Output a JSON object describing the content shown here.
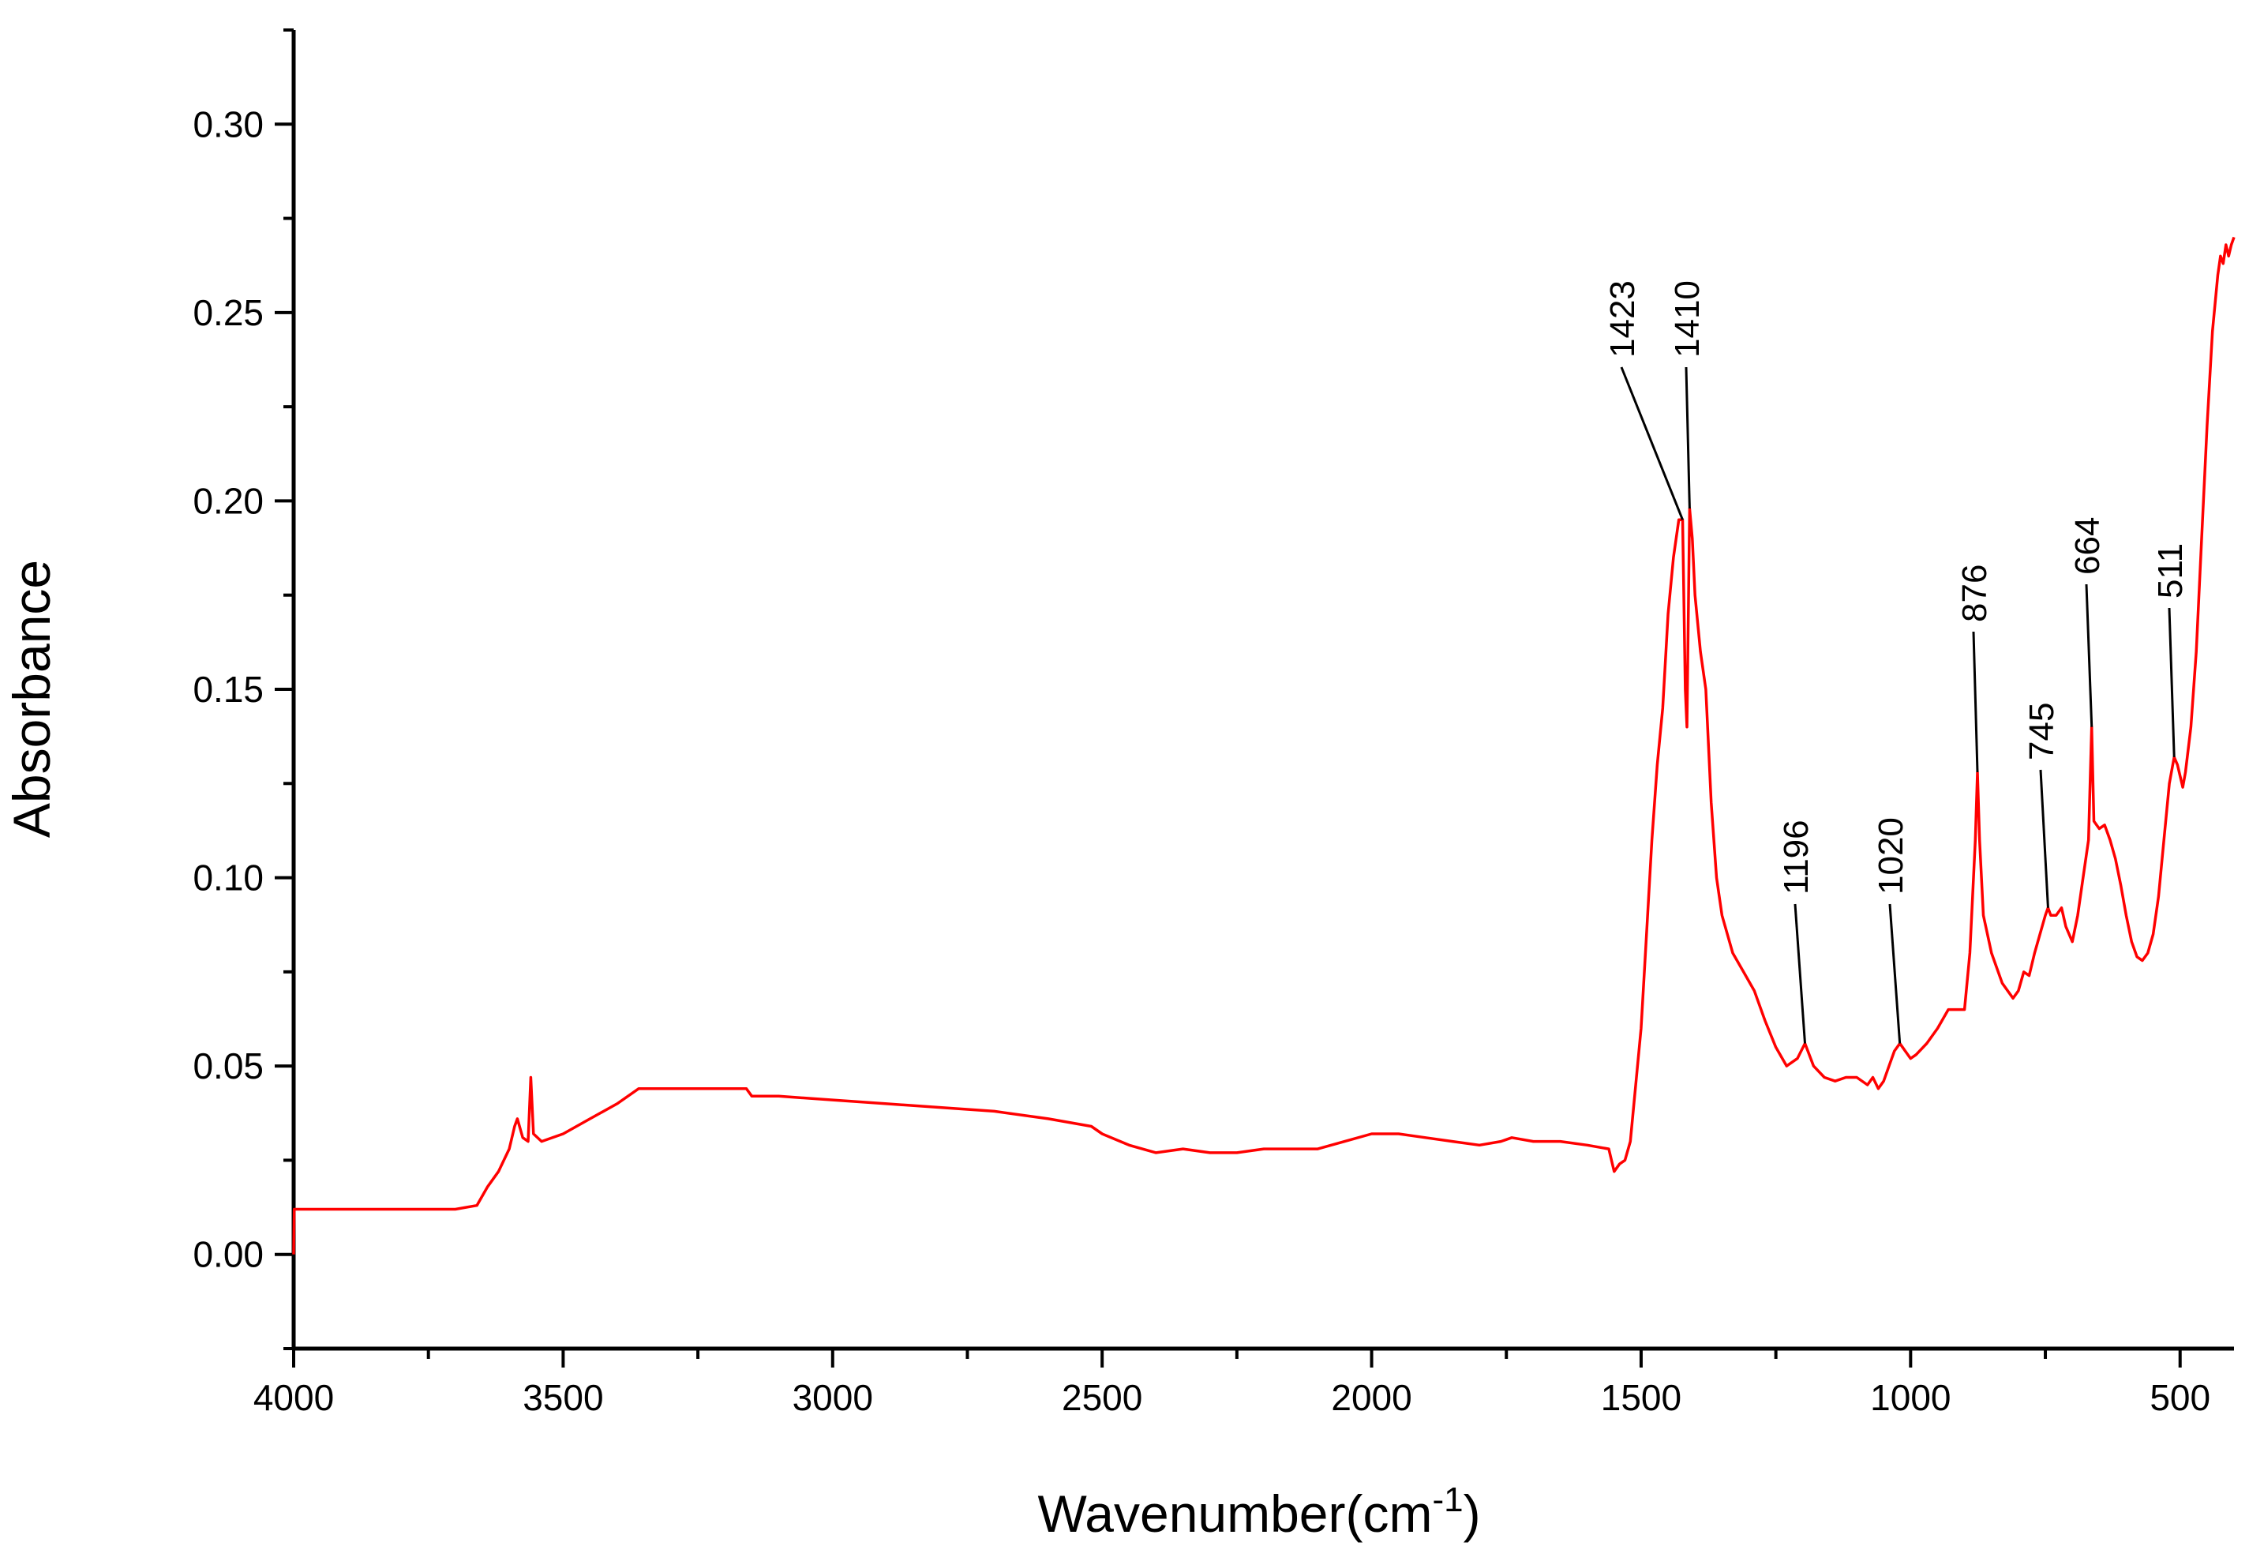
{
  "chart_data": {
    "type": "line",
    "title": "",
    "xlabel": "Wavenumber(cm",
    "xlabel_sup": "-1",
    "xlabel_close": ")",
    "ylabel": "Absorbance",
    "xlim": [
      4000,
      400
    ],
    "ylim": [
      -0.025,
      0.325
    ],
    "x_reversed": true,
    "grid": false,
    "legend": "none",
    "x_ticks": [
      4000,
      3500,
      3000,
      2500,
      2000,
      1500,
      1000,
      500
    ],
    "x_tick_labels": [
      "4000",
      "3500",
      "3000",
      "2500",
      "2000",
      "1500",
      "1000",
      "500"
    ],
    "y_ticks": [
      0.0,
      0.05,
      0.1,
      0.15,
      0.2,
      0.25,
      0.3
    ],
    "y_tick_labels": [
      "0.00",
      "0.05",
      "0.10",
      "0.15",
      "0.20",
      "0.25",
      "0.30"
    ],
    "series": [
      {
        "color": "#ff0000",
        "points": [
          [
            4000,
            0.0
          ],
          [
            3999,
            0.012
          ],
          [
            3950,
            0.012
          ],
          [
            3900,
            0.012
          ],
          [
            3850,
            0.012
          ],
          [
            3800,
            0.012
          ],
          [
            3750,
            0.012
          ],
          [
            3700,
            0.012
          ],
          [
            3660,
            0.013
          ],
          [
            3640,
            0.018
          ],
          [
            3620,
            0.022
          ],
          [
            3600,
            0.028
          ],
          [
            3590,
            0.034
          ],
          [
            3585,
            0.036
          ],
          [
            3575,
            0.031
          ],
          [
            3565,
            0.03
          ],
          [
            3560,
            0.047
          ],
          [
            3555,
            0.032
          ],
          [
            3540,
            0.03
          ],
          [
            3500,
            0.032
          ],
          [
            3450,
            0.036
          ],
          [
            3400,
            0.04
          ],
          [
            3360,
            0.044
          ],
          [
            3300,
            0.044
          ],
          [
            3250,
            0.044
          ],
          [
            3200,
            0.044
          ],
          [
            3160,
            0.044
          ],
          [
            3150,
            0.042
          ],
          [
            3100,
            0.042
          ],
          [
            3000,
            0.041
          ],
          [
            2900,
            0.04
          ],
          [
            2800,
            0.039
          ],
          [
            2700,
            0.038
          ],
          [
            2600,
            0.036
          ],
          [
            2520,
            0.034
          ],
          [
            2500,
            0.032
          ],
          [
            2450,
            0.029
          ],
          [
            2400,
            0.027
          ],
          [
            2350,
            0.028
          ],
          [
            2300,
            0.027
          ],
          [
            2250,
            0.027
          ],
          [
            2200,
            0.028
          ],
          [
            2150,
            0.028
          ],
          [
            2100,
            0.028
          ],
          [
            2050,
            0.03
          ],
          [
            2000,
            0.032
          ],
          [
            1950,
            0.032
          ],
          [
            1900,
            0.031
          ],
          [
            1850,
            0.03
          ],
          [
            1800,
            0.029
          ],
          [
            1760,
            0.03
          ],
          [
            1740,
            0.031
          ],
          [
            1700,
            0.03
          ],
          [
            1650,
            0.03
          ],
          [
            1600,
            0.029
          ],
          [
            1560,
            0.028
          ],
          [
            1550,
            0.022
          ],
          [
            1540,
            0.024
          ],
          [
            1530,
            0.025
          ],
          [
            1520,
            0.03
          ],
          [
            1510,
            0.045
          ],
          [
            1500,
            0.06
          ],
          [
            1490,
            0.085
          ],
          [
            1480,
            0.11
          ],
          [
            1470,
            0.13
          ],
          [
            1460,
            0.145
          ],
          [
            1450,
            0.17
          ],
          [
            1440,
            0.185
          ],
          [
            1430,
            0.195
          ],
          [
            1423,
            0.195
          ],
          [
            1418,
            0.15
          ],
          [
            1415,
            0.14
          ],
          [
            1410,
            0.198
          ],
          [
            1405,
            0.19
          ],
          [
            1400,
            0.175
          ],
          [
            1390,
            0.16
          ],
          [
            1380,
            0.15
          ],
          [
            1370,
            0.12
          ],
          [
            1360,
            0.1
          ],
          [
            1350,
            0.09
          ],
          [
            1330,
            0.08
          ],
          [
            1310,
            0.075
          ],
          [
            1290,
            0.07
          ],
          [
            1270,
            0.062
          ],
          [
            1250,
            0.055
          ],
          [
            1230,
            0.05
          ],
          [
            1210,
            0.052
          ],
          [
            1196,
            0.056
          ],
          [
            1180,
            0.05
          ],
          [
            1160,
            0.047
          ],
          [
            1140,
            0.046
          ],
          [
            1120,
            0.047
          ],
          [
            1100,
            0.047
          ],
          [
            1080,
            0.045
          ],
          [
            1070,
            0.047
          ],
          [
            1060,
            0.044
          ],
          [
            1050,
            0.046
          ],
          [
            1040,
            0.05
          ],
          [
            1030,
            0.054
          ],
          [
            1020,
            0.056
          ],
          [
            1010,
            0.054
          ],
          [
            1000,
            0.052
          ],
          [
            990,
            0.053
          ],
          [
            970,
            0.056
          ],
          [
            950,
            0.06
          ],
          [
            930,
            0.065
          ],
          [
            910,
            0.065
          ],
          [
            900,
            0.065
          ],
          [
            890,
            0.08
          ],
          [
            880,
            0.11
          ],
          [
            876,
            0.128
          ],
          [
            872,
            0.11
          ],
          [
            865,
            0.09
          ],
          [
            850,
            0.08
          ],
          [
            830,
            0.072
          ],
          [
            810,
            0.068
          ],
          [
            800,
            0.07
          ],
          [
            790,
            0.075
          ],
          [
            780,
            0.074
          ],
          [
            770,
            0.08
          ],
          [
            760,
            0.085
          ],
          [
            750,
            0.09
          ],
          [
            745,
            0.092
          ],
          [
            740,
            0.09
          ],
          [
            730,
            0.09
          ],
          [
            720,
            0.092
          ],
          [
            712,
            0.087
          ],
          [
            700,
            0.083
          ],
          [
            690,
            0.09
          ],
          [
            680,
            0.1
          ],
          [
            670,
            0.11
          ],
          [
            664,
            0.14
          ],
          [
            660,
            0.115
          ],
          [
            650,
            0.113
          ],
          [
            640,
            0.114
          ],
          [
            630,
            0.11
          ],
          [
            620,
            0.105
          ],
          [
            610,
            0.098
          ],
          [
            600,
            0.09
          ],
          [
            590,
            0.083
          ],
          [
            580,
            0.079
          ],
          [
            570,
            0.078
          ],
          [
            560,
            0.08
          ],
          [
            550,
            0.085
          ],
          [
            540,
            0.095
          ],
          [
            530,
            0.11
          ],
          [
            520,
            0.125
          ],
          [
            511,
            0.132
          ],
          [
            505,
            0.13
          ],
          [
            500,
            0.127
          ],
          [
            495,
            0.124
          ],
          [
            490,
            0.128
          ],
          [
            480,
            0.14
          ],
          [
            470,
            0.16
          ],
          [
            460,
            0.19
          ],
          [
            450,
            0.22
          ],
          [
            440,
            0.245
          ],
          [
            430,
            0.26
          ],
          [
            425,
            0.265
          ],
          [
            420,
            0.263
          ],
          [
            415,
            0.268
          ],
          [
            410,
            0.265
          ],
          [
            405,
            0.268
          ],
          [
            400,
            0.27
          ]
        ]
      }
    ],
    "annotations": [
      {
        "label": "1423",
        "x": 1423,
        "y": 0.195
      },
      {
        "label": "1410",
        "x": 1410,
        "y": 0.198
      },
      {
        "label": "1196",
        "x": 1196,
        "y": 0.056
      },
      {
        "label": "1020",
        "x": 1020,
        "y": 0.056
      },
      {
        "label": "876",
        "x": 876,
        "y": 0.128
      },
      {
        "label": "745",
        "x": 745,
        "y": 0.092
      },
      {
        "label": "664",
        "x": 664,
        "y": 0.14
      },
      {
        "label": "511",
        "x": 511,
        "y": 0.132
      }
    ]
  }
}
